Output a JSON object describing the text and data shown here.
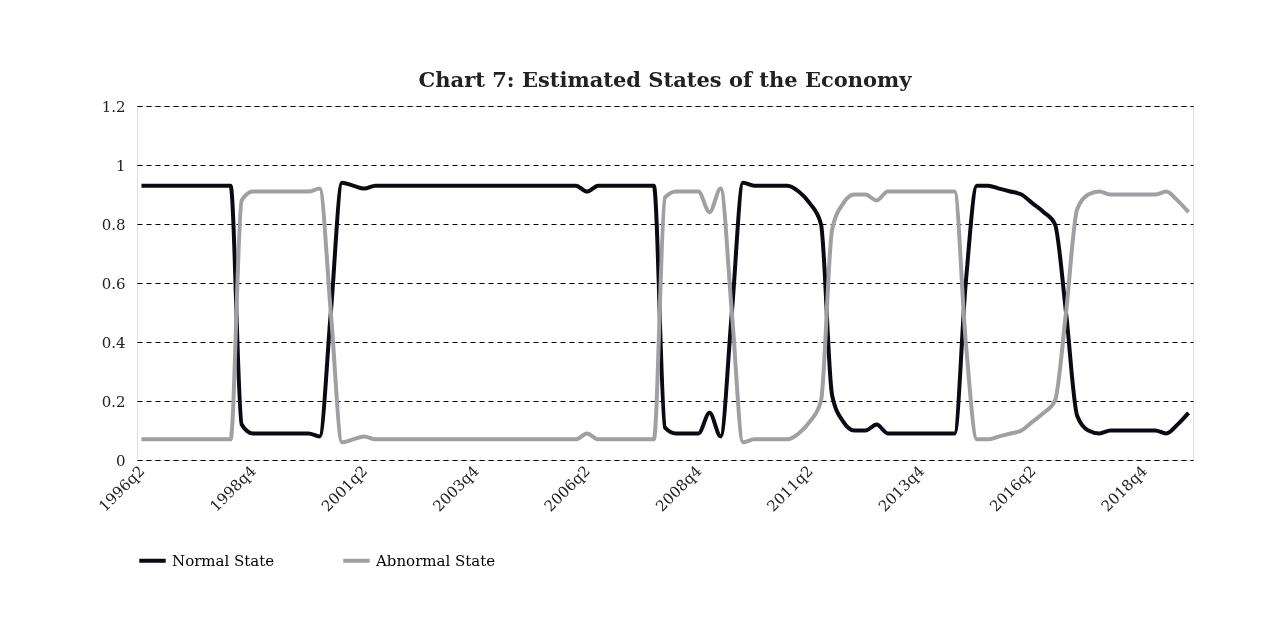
{
  "chart_data": {
    "type": "line",
    "title": "Chart 7: Estimated States of the Economy",
    "categories": [
      "1996q2",
      null,
      null,
      null,
      null,
      null,
      null,
      null,
      null,
      null,
      "1998q4",
      null,
      null,
      null,
      null,
      null,
      null,
      null,
      null,
      null,
      "2001q2",
      null,
      null,
      null,
      null,
      null,
      null,
      null,
      null,
      null,
      "2003q4",
      null,
      null,
      null,
      null,
      null,
      null,
      null,
      null,
      null,
      "2006q2",
      null,
      null,
      null,
      null,
      null,
      null,
      null,
      null,
      null,
      "2008q4",
      null,
      null,
      null,
      null,
      null,
      null,
      null,
      null,
      null,
      "2011q2",
      null,
      null,
      null,
      null,
      null,
      null,
      null,
      null,
      null,
      "2013q4",
      null,
      null,
      null,
      null,
      null,
      null,
      null,
      null,
      null,
      "2016q2",
      null,
      null,
      null,
      null,
      null,
      null,
      null,
      null,
      null,
      "2018q4",
      null,
      null,
      null,
      null
    ],
    "series": [
      {
        "name": "Normal State",
        "color": "#0a0a14",
        "values": [
          0.93,
          0.93,
          0.93,
          0.93,
          0.93,
          0.93,
          0.93,
          0.93,
          0.93,
          0.12,
          0.09,
          0.09,
          0.09,
          0.09,
          0.09,
          0.09,
          0.08,
          0.5,
          0.94,
          0.93,
          0.92,
          0.93,
          0.93,
          0.93,
          0.93,
          0.93,
          0.93,
          0.93,
          0.93,
          0.93,
          0.93,
          0.93,
          0.93,
          0.93,
          0.93,
          0.93,
          0.93,
          0.93,
          0.93,
          0.93,
          0.91,
          0.93,
          0.93,
          0.93,
          0.93,
          0.93,
          0.93,
          0.11,
          0.09,
          0.09,
          0.09,
          0.16,
          0.08,
          0.5,
          0.94,
          0.93,
          0.93,
          0.93,
          0.93,
          0.91,
          0.87,
          0.8,
          0.22,
          0.13,
          0.1,
          0.1,
          0.12,
          0.09,
          0.09,
          0.09,
          0.09,
          0.09,
          0.09,
          0.09,
          0.6,
          0.93,
          0.93,
          0.92,
          0.91,
          0.9,
          0.87,
          0.84,
          0.8,
          0.5,
          0.15,
          0.1,
          0.09,
          0.1,
          0.1,
          0.1,
          0.1,
          0.1,
          0.09,
          0.12,
          0.16
        ]
      },
      {
        "name": "Abnormal State",
        "color": "#a0a0a4",
        "values": [
          0.07,
          0.07,
          0.07,
          0.07,
          0.07,
          0.07,
          0.07,
          0.07,
          0.07,
          0.88,
          0.91,
          0.91,
          0.91,
          0.91,
          0.91,
          0.91,
          0.92,
          0.5,
          0.06,
          0.07,
          0.08,
          0.07,
          0.07,
          0.07,
          0.07,
          0.07,
          0.07,
          0.07,
          0.07,
          0.07,
          0.07,
          0.07,
          0.07,
          0.07,
          0.07,
          0.07,
          0.07,
          0.07,
          0.07,
          0.07,
          0.09,
          0.07,
          0.07,
          0.07,
          0.07,
          0.07,
          0.07,
          0.89,
          0.91,
          0.91,
          0.91,
          0.84,
          0.92,
          0.5,
          0.06,
          0.07,
          0.07,
          0.07,
          0.07,
          0.09,
          0.13,
          0.2,
          0.78,
          0.87,
          0.9,
          0.9,
          0.88,
          0.91,
          0.91,
          0.91,
          0.91,
          0.91,
          0.91,
          0.91,
          0.4,
          0.07,
          0.07,
          0.08,
          0.09,
          0.1,
          0.13,
          0.16,
          0.2,
          0.5,
          0.85,
          0.9,
          0.91,
          0.9,
          0.9,
          0.9,
          0.9,
          0.9,
          0.91,
          0.88,
          0.84
        ]
      }
    ],
    "ylim": [
      0,
      1.2
    ],
    "yticks": [
      0,
      0.2,
      0.4,
      0.6,
      0.8,
      1,
      1.2
    ],
    "grid": "y",
    "legend": "bottom",
    "marker": "none",
    "line_style": "solid"
  }
}
